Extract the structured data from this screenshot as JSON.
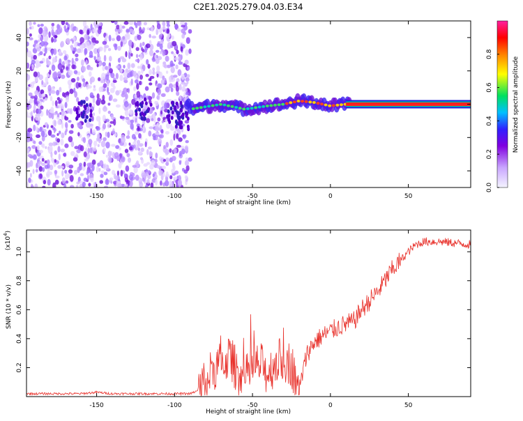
{
  "figure": {
    "title": "C2E1.2025.279.04.03.E34"
  },
  "colors": {
    "snr_line": "#e8302a",
    "axis": "#000000",
    "colorbar_stops": [
      "#f4f4ff",
      "#c9a6ff",
      "#8000e0",
      "#3020ff",
      "#00c0ff",
      "#00e060",
      "#ffff00",
      "#ff8000",
      "#ff0000",
      "#ff20a0"
    ]
  },
  "chart_data": [
    {
      "type": "heatmap",
      "title": "C2E1.2025.279.04.03.E34",
      "xlabel": "Height of straight line (km)",
      "ylabel": "Frequency (Hz)",
      "xlim": [
        -195,
        90
      ],
      "ylim": [
        -50,
        50
      ],
      "xticks": [
        -150,
        -100,
        -50,
        0,
        50
      ],
      "yticks": [
        -40,
        -20,
        0,
        20,
        40
      ],
      "description_of_pattern": {
        "noise_region_x": [
          -195,
          -90
        ],
        "trace": [
          {
            "x": -90,
            "y": -3
          },
          {
            "x": -70,
            "y": 0
          },
          {
            "x": -55,
            "y": -3
          },
          {
            "x": -40,
            "y": -1
          },
          {
            "x": -30,
            "y": 0
          },
          {
            "x": -20,
            "y": 2
          },
          {
            "x": -10,
            "y": 1
          },
          {
            "x": 0,
            "y": -1
          },
          {
            "x": 10,
            "y": 0
          },
          {
            "x": 90,
            "y": 0
          }
        ]
      },
      "colorbar": {
        "label": "Normalized spectral amplitude",
        "range": [
          0,
          1
        ],
        "ticks": [
          "0.0",
          "0.2",
          "0.4",
          "0.6",
          "0.8"
        ]
      }
    },
    {
      "type": "line",
      "xlabel": "Height of straight line (km)",
      "ylabel": "SNR (10 * v/v)",
      "yscale_label": "(x10",
      "yscale_exponent": "4",
      "xlim": [
        -195,
        90
      ],
      "ylim": [
        0,
        1.15
      ],
      "xticks": [
        -150,
        -100,
        -50,
        0,
        50
      ],
      "yticks": [
        "0.2",
        "0.4",
        "0.6",
        "0.8",
        "1.0"
      ],
      "series": [
        {
          "name": "SNR",
          "x": [
            -195,
            -180,
            -160,
            -150,
            -140,
            -120,
            -100,
            -90,
            -85,
            -80,
            -75,
            -70,
            -65,
            -60,
            -55,
            -50,
            -45,
            -40,
            -35,
            -30,
            -25,
            -20,
            -15,
            -10,
            -5,
            0,
            5,
            10,
            15,
            20,
            25,
            30,
            35,
            40,
            45,
            50,
            55,
            60,
            70,
            80,
            90
          ],
          "values": [
            0.02,
            0.02,
            0.02,
            0.03,
            0.02,
            0.02,
            0.02,
            0.02,
            0.04,
            0.12,
            0.2,
            0.22,
            0.28,
            0.18,
            0.12,
            0.2,
            0.22,
            0.16,
            0.24,
            0.26,
            0.22,
            0.05,
            0.3,
            0.38,
            0.42,
            0.45,
            0.48,
            0.5,
            0.52,
            0.6,
            0.66,
            0.72,
            0.8,
            0.88,
            0.94,
            1.0,
            1.05,
            1.07,
            1.07,
            1.06,
            1.05
          ]
        }
      ]
    }
  ]
}
